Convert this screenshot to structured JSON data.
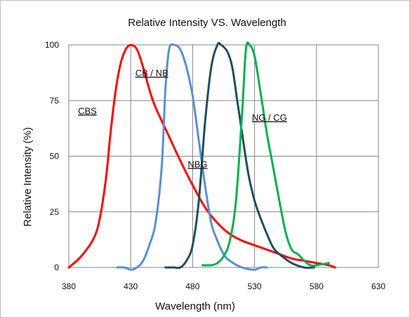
{
  "chart_data": {
    "type": "line",
    "title": "Relative Intensity VS. Wavelength",
    "xlabel": "Wavelength (nm)",
    "ylabel": "Relative Intensity (%)",
    "xlim": [
      380,
      630
    ],
    "ylim": [
      0,
      100
    ],
    "x_ticks": [
      "380",
      "430",
      "480",
      "530",
      "580",
      "630"
    ],
    "y_ticks": [
      "0",
      "25",
      "50",
      "75",
      "100"
    ],
    "grid": true,
    "series": [
      {
        "color": "#ff0000",
        "x": [
          380,
          390,
          400,
          405,
          410,
          414,
          418,
          422,
          426,
          430,
          435,
          440,
          445,
          450,
          460,
          470,
          480,
          490,
          500,
          510,
          520,
          530,
          540,
          550,
          560,
          570,
          580,
          590,
          595
        ],
        "y": [
          0,
          5,
          13,
          22,
          40,
          62,
          80,
          92,
          98,
          100,
          98,
          90,
          80,
          72,
          60,
          48,
          37,
          27,
          20,
          15,
          12,
          10,
          8,
          6,
          4,
          3,
          2,
          1,
          0
        ]
      },
      {
        "color": "#5b8fd0",
        "x": [
          419,
          425,
          430,
          435,
          440,
          445,
          450,
          455,
          458,
          461,
          465,
          470,
          475,
          480,
          485,
          490,
          495,
          500,
          505,
          510,
          520,
          530,
          535,
          540
        ],
        "y": [
          0,
          0,
          -1,
          0,
          3,
          10,
          20,
          45,
          80,
          98,
          100,
          98,
          90,
          77,
          57,
          37,
          20,
          12,
          6,
          3,
          0,
          -1,
          0,
          0
        ]
      },
      {
        "color": "#1f4e5f",
        "x": [
          458,
          465,
          470,
          475,
          480,
          485,
          490,
          495,
          500,
          503,
          508,
          512,
          516,
          520,
          525,
          530,
          535,
          540,
          545,
          550,
          560,
          570,
          578
        ],
        "y": [
          0,
          0,
          0,
          3,
          10,
          30,
          65,
          90,
          100,
          100,
          97,
          90,
          75,
          60,
          42,
          30,
          22,
          15,
          9,
          6,
          2,
          0,
          0
        ]
      },
      {
        "color": "#00b050",
        "x": [
          488,
          495,
          500,
          505,
          510,
          515,
          520,
          523,
          526,
          530,
          535,
          540,
          545,
          550,
          555,
          560,
          565,
          570,
          575,
          580,
          590
        ],
        "y": [
          1,
          1,
          2,
          5,
          12,
          30,
          70,
          98,
          100,
          95,
          78,
          60,
          45,
          30,
          16,
          8,
          6,
          3,
          1,
          1,
          2
        ]
      }
    ],
    "annotations": [
      {
        "text": "CBS",
        "x": 395,
        "y": 69
      },
      {
        "text": "CB / NB",
        "x": 447,
        "y": 86
      },
      {
        "text": "NBG",
        "x": 484,
        "y": 45
      },
      {
        "text": "NG / CG",
        "x": 542,
        "y": 66
      }
    ]
  }
}
